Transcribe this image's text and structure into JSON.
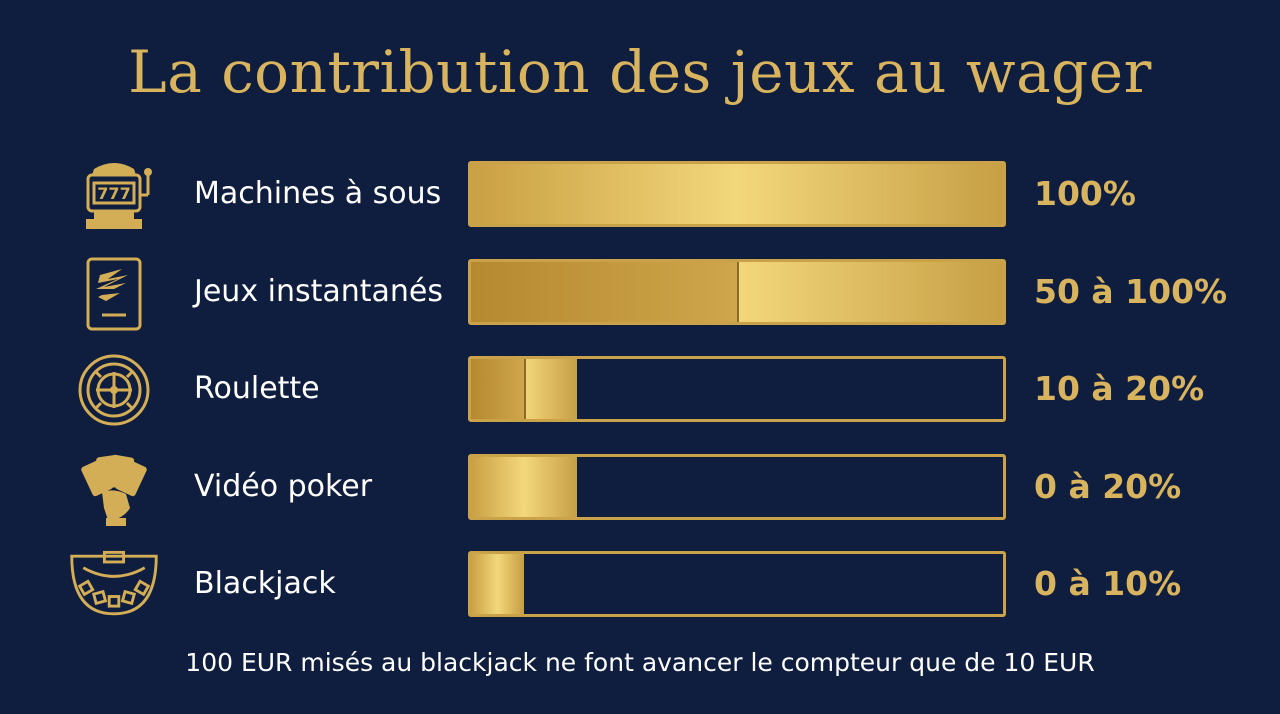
{
  "title": "La contribution des jeux au wager",
  "footnote": "100 EUR misés au blackjack ne font avancer le compteur que de 10 EUR",
  "colors": {
    "background": "#0f1d3e",
    "gold": "#d9b45f",
    "text": "#ffffff"
  },
  "chart_data": {
    "type": "bar",
    "orientation": "horizontal",
    "title": "La contribution des jeux au wager",
    "unit": "%",
    "xlim": [
      0,
      100
    ],
    "categories": [
      "Machines à sous",
      "Jeux instantanés",
      "Roulette",
      "Vidéo poker",
      "Blackjack"
    ],
    "icons": [
      "slot-machine-icon",
      "scratch-card-icon",
      "roulette-wheel-icon",
      "poker-cards-icon",
      "blackjack-table-icon"
    ],
    "value_labels": [
      "100%",
      "50 à 100%",
      "10 à 20%",
      "0 à 20%",
      "0 à 10%"
    ],
    "min_values": [
      100,
      50,
      10,
      0,
      0
    ],
    "max_values": [
      100,
      100,
      20,
      20,
      10
    ]
  }
}
